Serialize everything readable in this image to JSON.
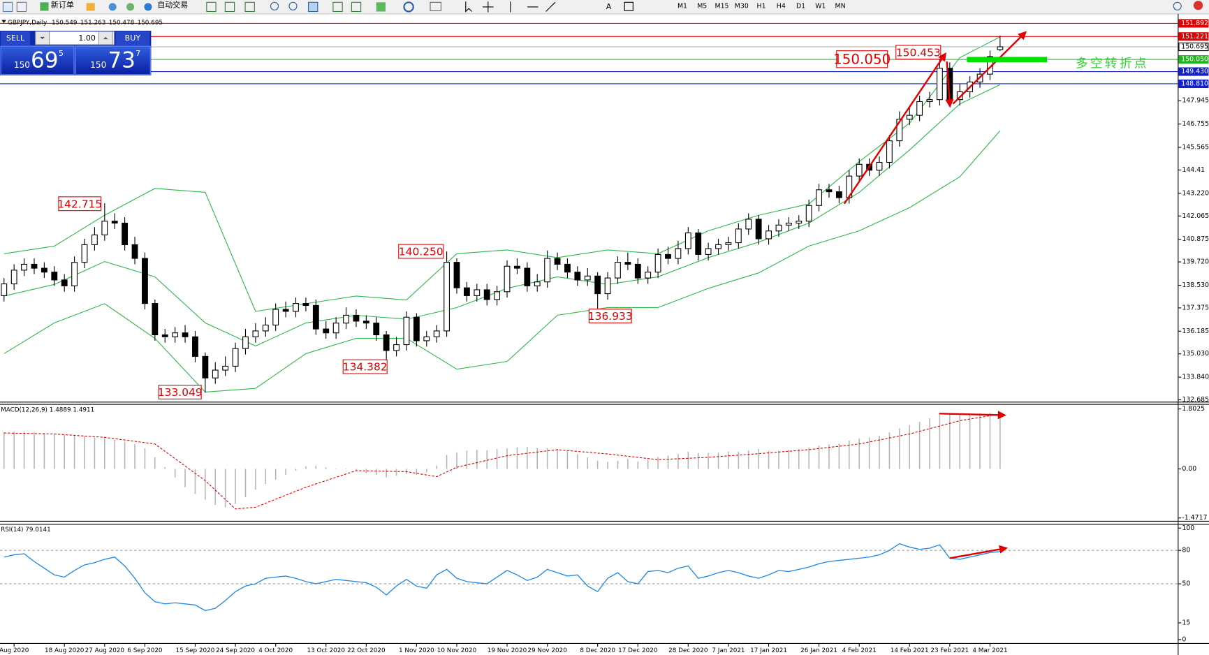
{
  "toolbar": {
    "new_order": "新订单",
    "auto_trading": "自动交易",
    "timeframes": [
      "M1",
      "M5",
      "M15",
      "M30",
      "H1",
      "H4",
      "D1",
      "W1",
      "MN"
    ]
  },
  "trade_panel": {
    "sell": "SELL",
    "buy": "BUY",
    "lot": "1.00",
    "bid": {
      "big": "150",
      "main": "69",
      "small": "5"
    },
    "ask": {
      "big": "150",
      "main": "73",
      "small": "7"
    }
  },
  "chart_data": [
    {
      "type": "candlestick",
      "symbol": "GBPJPY,Daily",
      "open": [
        138.0,
        138.6,
        139.3,
        139.6,
        139.4,
        139.2,
        138.8,
        138.5,
        139.7,
        140.6,
        141.1,
        141.8,
        141.7,
        140.6,
        139.9,
        137.6,
        136.0,
        135.9,
        136.1,
        135.9,
        134.9,
        133.8,
        134.2,
        134.4,
        135.3,
        135.9,
        136.2,
        136.5,
        137.3,
        137.2,
        137.6,
        137.5,
        136.3,
        136.1,
        136.6,
        137.0,
        136.7,
        136.6,
        136.0,
        135.2,
        135.5,
        136.9,
        135.7,
        135.9,
        136.2,
        139.7,
        138.4,
        138.0,
        138.3,
        137.8,
        138.2,
        139.5,
        139.4,
        138.5,
        138.7,
        139.9,
        139.6,
        139.2,
        138.8,
        139.0,
        138.1,
        138.9,
        139.7,
        139.6,
        138.9,
        139.2,
        140.1,
        139.9,
        140.4,
        141.2,
        140.1,
        140.4,
        140.6,
        140.7,
        141.4,
        141.9,
        140.9,
        141.3,
        141.6,
        141.7,
        141.8,
        142.6,
        143.4,
        143.3,
        143.0,
        144.1,
        144.7,
        144.4,
        144.8,
        145.9,
        147.0,
        147.2,
        147.9,
        148.0,
        149.6,
        148.0,
        148.4,
        148.9,
        149.3,
        150.549
      ],
      "high": [
        138.9,
        139.6,
        139.9,
        139.9,
        139.7,
        139.5,
        139.1,
        140.0,
        140.9,
        141.5,
        142.715,
        142.2,
        142.0,
        141.0,
        140.2,
        137.8,
        136.3,
        136.4,
        136.5,
        136.2,
        135.1,
        134.6,
        134.9,
        135.6,
        136.3,
        136.6,
        136.9,
        137.6,
        137.7,
        137.9,
        137.9,
        137.8,
        136.7,
        136.9,
        137.4,
        137.3,
        137.0,
        136.9,
        136.2,
        135.9,
        137.2,
        137.1,
        136.2,
        136.5,
        140.25,
        139.9,
        138.7,
        138.6,
        138.6,
        138.5,
        139.8,
        139.9,
        139.7,
        139.1,
        140.3,
        140.2,
        139.9,
        139.5,
        139.4,
        139.2,
        139.2,
        140.0,
        140.2,
        139.9,
        139.5,
        140.4,
        140.5,
        140.8,
        141.5,
        141.4,
        140.7,
        140.9,
        141.0,
        141.7,
        142.2,
        142.1,
        141.6,
        141.9,
        142.0,
        142.1,
        142.9,
        143.7,
        143.7,
        143.6,
        144.4,
        145.0,
        145.0,
        145.1,
        146.2,
        147.4,
        147.6,
        148.2,
        148.4,
        150.453,
        149.9,
        148.8,
        149.2,
        149.6,
        150.5,
        151.263
      ],
      "low": [
        137.7,
        138.3,
        139.0,
        139.1,
        138.9,
        138.5,
        138.2,
        138.2,
        139.4,
        140.3,
        140.8,
        141.4,
        140.3,
        139.6,
        137.3,
        135.7,
        135.6,
        135.6,
        135.6,
        134.6,
        133.049,
        133.5,
        133.9,
        134.1,
        135.0,
        135.6,
        135.9,
        136.2,
        136.9,
        136.9,
        137.2,
        136.0,
        135.8,
        135.8,
        136.3,
        136.4,
        136.3,
        135.7,
        134.382,
        134.9,
        135.2,
        135.4,
        135.4,
        135.6,
        135.9,
        138.1,
        137.7,
        137.7,
        137.5,
        137.5,
        137.9,
        139.1,
        138.2,
        138.2,
        138.4,
        139.3,
        138.9,
        138.5,
        138.5,
        136.933,
        137.8,
        138.6,
        139.3,
        138.6,
        138.6,
        138.9,
        139.6,
        139.6,
        140.1,
        139.8,
        139.8,
        140.1,
        140.3,
        140.4,
        141.1,
        140.6,
        140.6,
        141.0,
        141.3,
        141.4,
        141.5,
        142.3,
        143.0,
        142.7,
        142.7,
        143.8,
        144.1,
        144.1,
        144.5,
        145.6,
        146.7,
        146.9,
        147.6,
        147.7,
        147.7,
        147.7,
        148.1,
        148.6,
        149.0,
        150.478
      ],
      "close": [
        138.6,
        139.3,
        139.6,
        139.4,
        139.2,
        138.8,
        138.5,
        139.7,
        140.6,
        141.1,
        141.8,
        141.7,
        140.6,
        139.9,
        137.6,
        136.0,
        135.9,
        136.1,
        135.9,
        134.9,
        133.8,
        134.2,
        134.4,
        135.3,
        135.9,
        136.2,
        136.5,
        137.3,
        137.2,
        137.6,
        137.5,
        136.3,
        136.1,
        136.6,
        137.0,
        136.7,
        136.6,
        136.0,
        135.2,
        135.5,
        136.9,
        135.7,
        135.9,
        136.2,
        139.7,
        138.4,
        138.0,
        138.3,
        137.8,
        138.2,
        139.5,
        139.4,
        138.5,
        138.7,
        139.9,
        139.6,
        139.2,
        138.8,
        139.0,
        138.1,
        138.9,
        139.7,
        139.6,
        138.9,
        139.2,
        140.1,
        139.9,
        140.4,
        141.2,
        140.1,
        140.4,
        140.6,
        140.7,
        141.4,
        141.9,
        140.9,
        141.3,
        141.6,
        141.7,
        141.8,
        142.6,
        143.4,
        143.3,
        143.0,
        144.1,
        144.7,
        144.4,
        144.8,
        145.9,
        147.0,
        147.2,
        147.9,
        148.0,
        149.6,
        148.0,
        148.4,
        148.9,
        149.3,
        150.2,
        150.695
      ],
      "bands": [
        {
          "color": "#2db84b",
          "x": [
            0,
            5,
            10,
            15,
            20,
            25,
            30,
            35,
            40,
            45,
            50,
            55,
            60,
            65,
            70,
            75,
            80,
            85,
            90,
            95,
            99
          ],
          "values": [
            140.14,
            140.53,
            142.1,
            143.47,
            143.27,
            137.2,
            137.59,
            137.98,
            137.78,
            140.14,
            140.33,
            139.94,
            140.33,
            140.14,
            141.31,
            142.1,
            142.68,
            144.84,
            146.8,
            150.14,
            151.2
          ]
        },
        {
          "color": "#2db84b",
          "x": [
            0,
            5,
            10,
            15,
            20,
            25,
            30,
            35,
            40,
            45,
            50,
            55,
            60,
            65,
            70,
            75,
            80,
            85,
            90,
            95,
            99
          ],
          "values": [
            137.98,
            138.57,
            139.74,
            138.96,
            136.61,
            135.43,
            136.61,
            137.0,
            136.8,
            137.39,
            138.37,
            138.96,
            138.57,
            138.96,
            139.94,
            140.73,
            141.7,
            143.27,
            145.43,
            147.78,
            148.76
          ]
        },
        {
          "color": "#2db84b",
          "x": [
            0,
            5,
            10,
            15,
            20,
            25,
            30,
            35,
            40,
            45,
            50,
            55,
            60,
            65,
            70,
            75,
            80,
            85,
            90,
            95,
            99
          ],
          "values": [
            135.04,
            136.61,
            137.59,
            135.82,
            133.08,
            133.27,
            135.04,
            135.82,
            135.82,
            134.25,
            134.64,
            137.0,
            137.39,
            137.39,
            138.37,
            139.16,
            140.53,
            141.31,
            142.49,
            144.06,
            146.41
          ]
        }
      ],
      "levels": [
        {
          "value": 151.892,
          "color": "#e00000"
        },
        {
          "value": 151.221,
          "color": "#e00000"
        },
        {
          "value": 150.695,
          "color": "#b4b4b4"
        },
        {
          "value": 150.05,
          "label": "150.050",
          "color": "#22b422"
        },
        {
          "value": 149.43,
          "label": "149.430",
          "color": "#1020d0"
        },
        {
          "value": 148.81,
          "label": "148.810",
          "color": "#1020d0"
        }
      ],
      "annotations": [
        "142.715",
        "140.250",
        "136.933",
        "134.382",
        "133.049",
        "150.050",
        "150.453",
        "多空转折点"
      ],
      "xlim": [
        -0.4,
        116.7
      ],
      "xticks": [
        {
          "value": 1,
          "label": "Aug 2020"
        },
        {
          "value": 6,
          "label": "18 Aug 2020"
        },
        {
          "value": 10,
          "label": "27 Aug 2020"
        },
        {
          "value": 14,
          "label": "6 Sep 2020"
        },
        {
          "value": 19,
          "label": "15 Sep 2020"
        },
        {
          "value": 23,
          "label": "24 Sep 2020"
        },
        {
          "value": 27,
          "label": "4 Oct 2020"
        },
        {
          "value": 32,
          "label": "13 Oct 2020"
        },
        {
          "value": 36,
          "label": "22 Oct 2020"
        },
        {
          "value": 41,
          "label": "1 Nov 2020"
        },
        {
          "value": 45,
          "label": "10 Nov 2020"
        },
        {
          "value": 50,
          "label": "19 Nov 2020"
        },
        {
          "value": 54,
          "label": "29 Nov 2020"
        },
        {
          "value": 59,
          "label": "8 Dec 2020"
        },
        {
          "value": 63,
          "label": "17 Dec 2020"
        },
        {
          "value": 68,
          "label": "28 Dec 2020"
        },
        {
          "value": 72,
          "label": "7 Jan 2021"
        },
        {
          "value": 76,
          "label": "17 Jan 2021"
        },
        {
          "value": 81,
          "label": "26 Jan 2021"
        },
        {
          "value": 85,
          "label": "4 Feb 2021"
        },
        {
          "value": 90,
          "label": "14 Feb 2021"
        },
        {
          "value": 94,
          "label": "23 Feb 2021"
        },
        {
          "value": 98,
          "label": "4 Mar 2021"
        }
      ],
      "ylim": [
        132.57,
        152.22
      ],
      "yticks": [
        147.945,
        146.755,
        145.565,
        144.41,
        {
          "value": 143.22,
          "label": "143.220"
        },
        142.065,
        140.875,
        {
          "value": 139.72,
          "label": "139.720"
        },
        {
          "value": 138.53,
          "label": "138.530"
        },
        137.375,
        136.185,
        {
          "value": 135.03,
          "label": "135.030"
        },
        {
          "value": 133.84,
          "label": "133.840"
        },
        132.685
      ]
    },
    {
      "type": "bar",
      "title": "MACD(12,26,9) 1.4889 1.4911",
      "color": "#b4b4b4",
      "values": [
        1.1,
        1.12,
        1.12,
        1.1,
        1.08,
        1.05,
        1.02,
        1.0,
        0.98,
        0.95,
        0.92,
        0.88,
        0.82,
        0.75,
        0.62,
        0.35,
        0.05,
        -0.25,
        -0.55,
        -0.75,
        -0.92,
        -1.08,
        -1.15,
        -1.05,
        -0.85,
        -0.62,
        -0.45,
        -0.32,
        -0.18,
        -0.05,
        0.08,
        0.1,
        0.05,
        0.0,
        0.02,
        -0.05,
        -0.12,
        -0.18,
        -0.25,
        -0.2,
        -0.15,
        -0.18,
        -0.1,
        0.1,
        0.42,
        0.5,
        0.55,
        0.57,
        0.56,
        0.6,
        0.62,
        0.65,
        0.66,
        0.62,
        0.62,
        0.6,
        0.55,
        0.45,
        0.35,
        0.25,
        0.22,
        0.25,
        0.3,
        0.22,
        0.28,
        0.36,
        0.4,
        0.45,
        0.52,
        0.48,
        0.48,
        0.5,
        0.52,
        0.52,
        0.56,
        0.6,
        0.55,
        0.55,
        0.58,
        0.6,
        0.64,
        0.7,
        0.74,
        0.76,
        0.85,
        0.92,
        0.95,
        1.0,
        1.1,
        1.22,
        1.32,
        1.42,
        1.52,
        1.62,
        1.65,
        1.64,
        1.66,
        1.67,
        1.68,
        1.69
      ],
      "signal": {
        "color": "#e00000",
        "x": [
          0,
          5,
          10,
          15,
          20,
          23,
          25,
          30,
          35,
          40,
          43,
          45,
          50,
          55,
          60,
          65,
          70,
          75,
          80,
          85,
          90,
          95,
          99
        ],
        "values": [
          1.08,
          1.05,
          0.95,
          0.75,
          -0.35,
          -1.2,
          -1.15,
          -0.55,
          -0.05,
          -0.08,
          -0.23,
          0.05,
          0.4,
          0.58,
          0.45,
          0.28,
          0.35,
          0.46,
          0.58,
          0.75,
          1.05,
          1.45,
          1.65
        ]
      },
      "ylim": [
        -1.57,
        1.94
      ],
      "yticks": [
        1.8025,
        {
          "value": 0,
          "label": "0.00"
        },
        -1.4717
      ]
    },
    {
      "type": "line",
      "title": "RSI(14) 79.0141",
      "color": "#1e88e5",
      "values": [
        74,
        76,
        77,
        70,
        64,
        58,
        56,
        62,
        67,
        69,
        72,
        74,
        66,
        55,
        42,
        34,
        32,
        33,
        32,
        31,
        26,
        28,
        35,
        43,
        48,
        50,
        55,
        56,
        57,
        55,
        52,
        50,
        52,
        54,
        53,
        52,
        51,
        47,
        40,
        48,
        54,
        48,
        46,
        58,
        63,
        55,
        52,
        51,
        50,
        56,
        62,
        58,
        53,
        56,
        63,
        60,
        57,
        58,
        48,
        43,
        55,
        60,
        52,
        50,
        61,
        62,
        60,
        64,
        66,
        55,
        57,
        60,
        62,
        60,
        57,
        55,
        58,
        62,
        61,
        63,
        65,
        68,
        70,
        71,
        72,
        73,
        74,
        76,
        80,
        86,
        83,
        81,
        82,
        85,
        73,
        72,
        74,
        76,
        78,
        79.0141
      ],
      "ylim": [
        -2.8,
        103.4
      ],
      "yticks": [
        100,
        80,
        50,
        15,
        0
      ],
      "dashed_levels": [
        80,
        50
      ]
    }
  ]
}
